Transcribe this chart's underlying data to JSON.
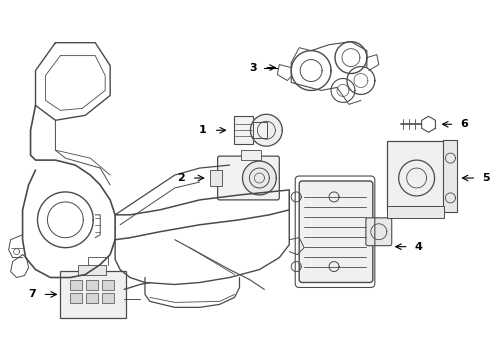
{
  "background_color": "#ffffff",
  "line_color": "#4a4a4a",
  "text_color": "#000000",
  "figsize": [
    4.9,
    3.6
  ],
  "dpi": 100
}
